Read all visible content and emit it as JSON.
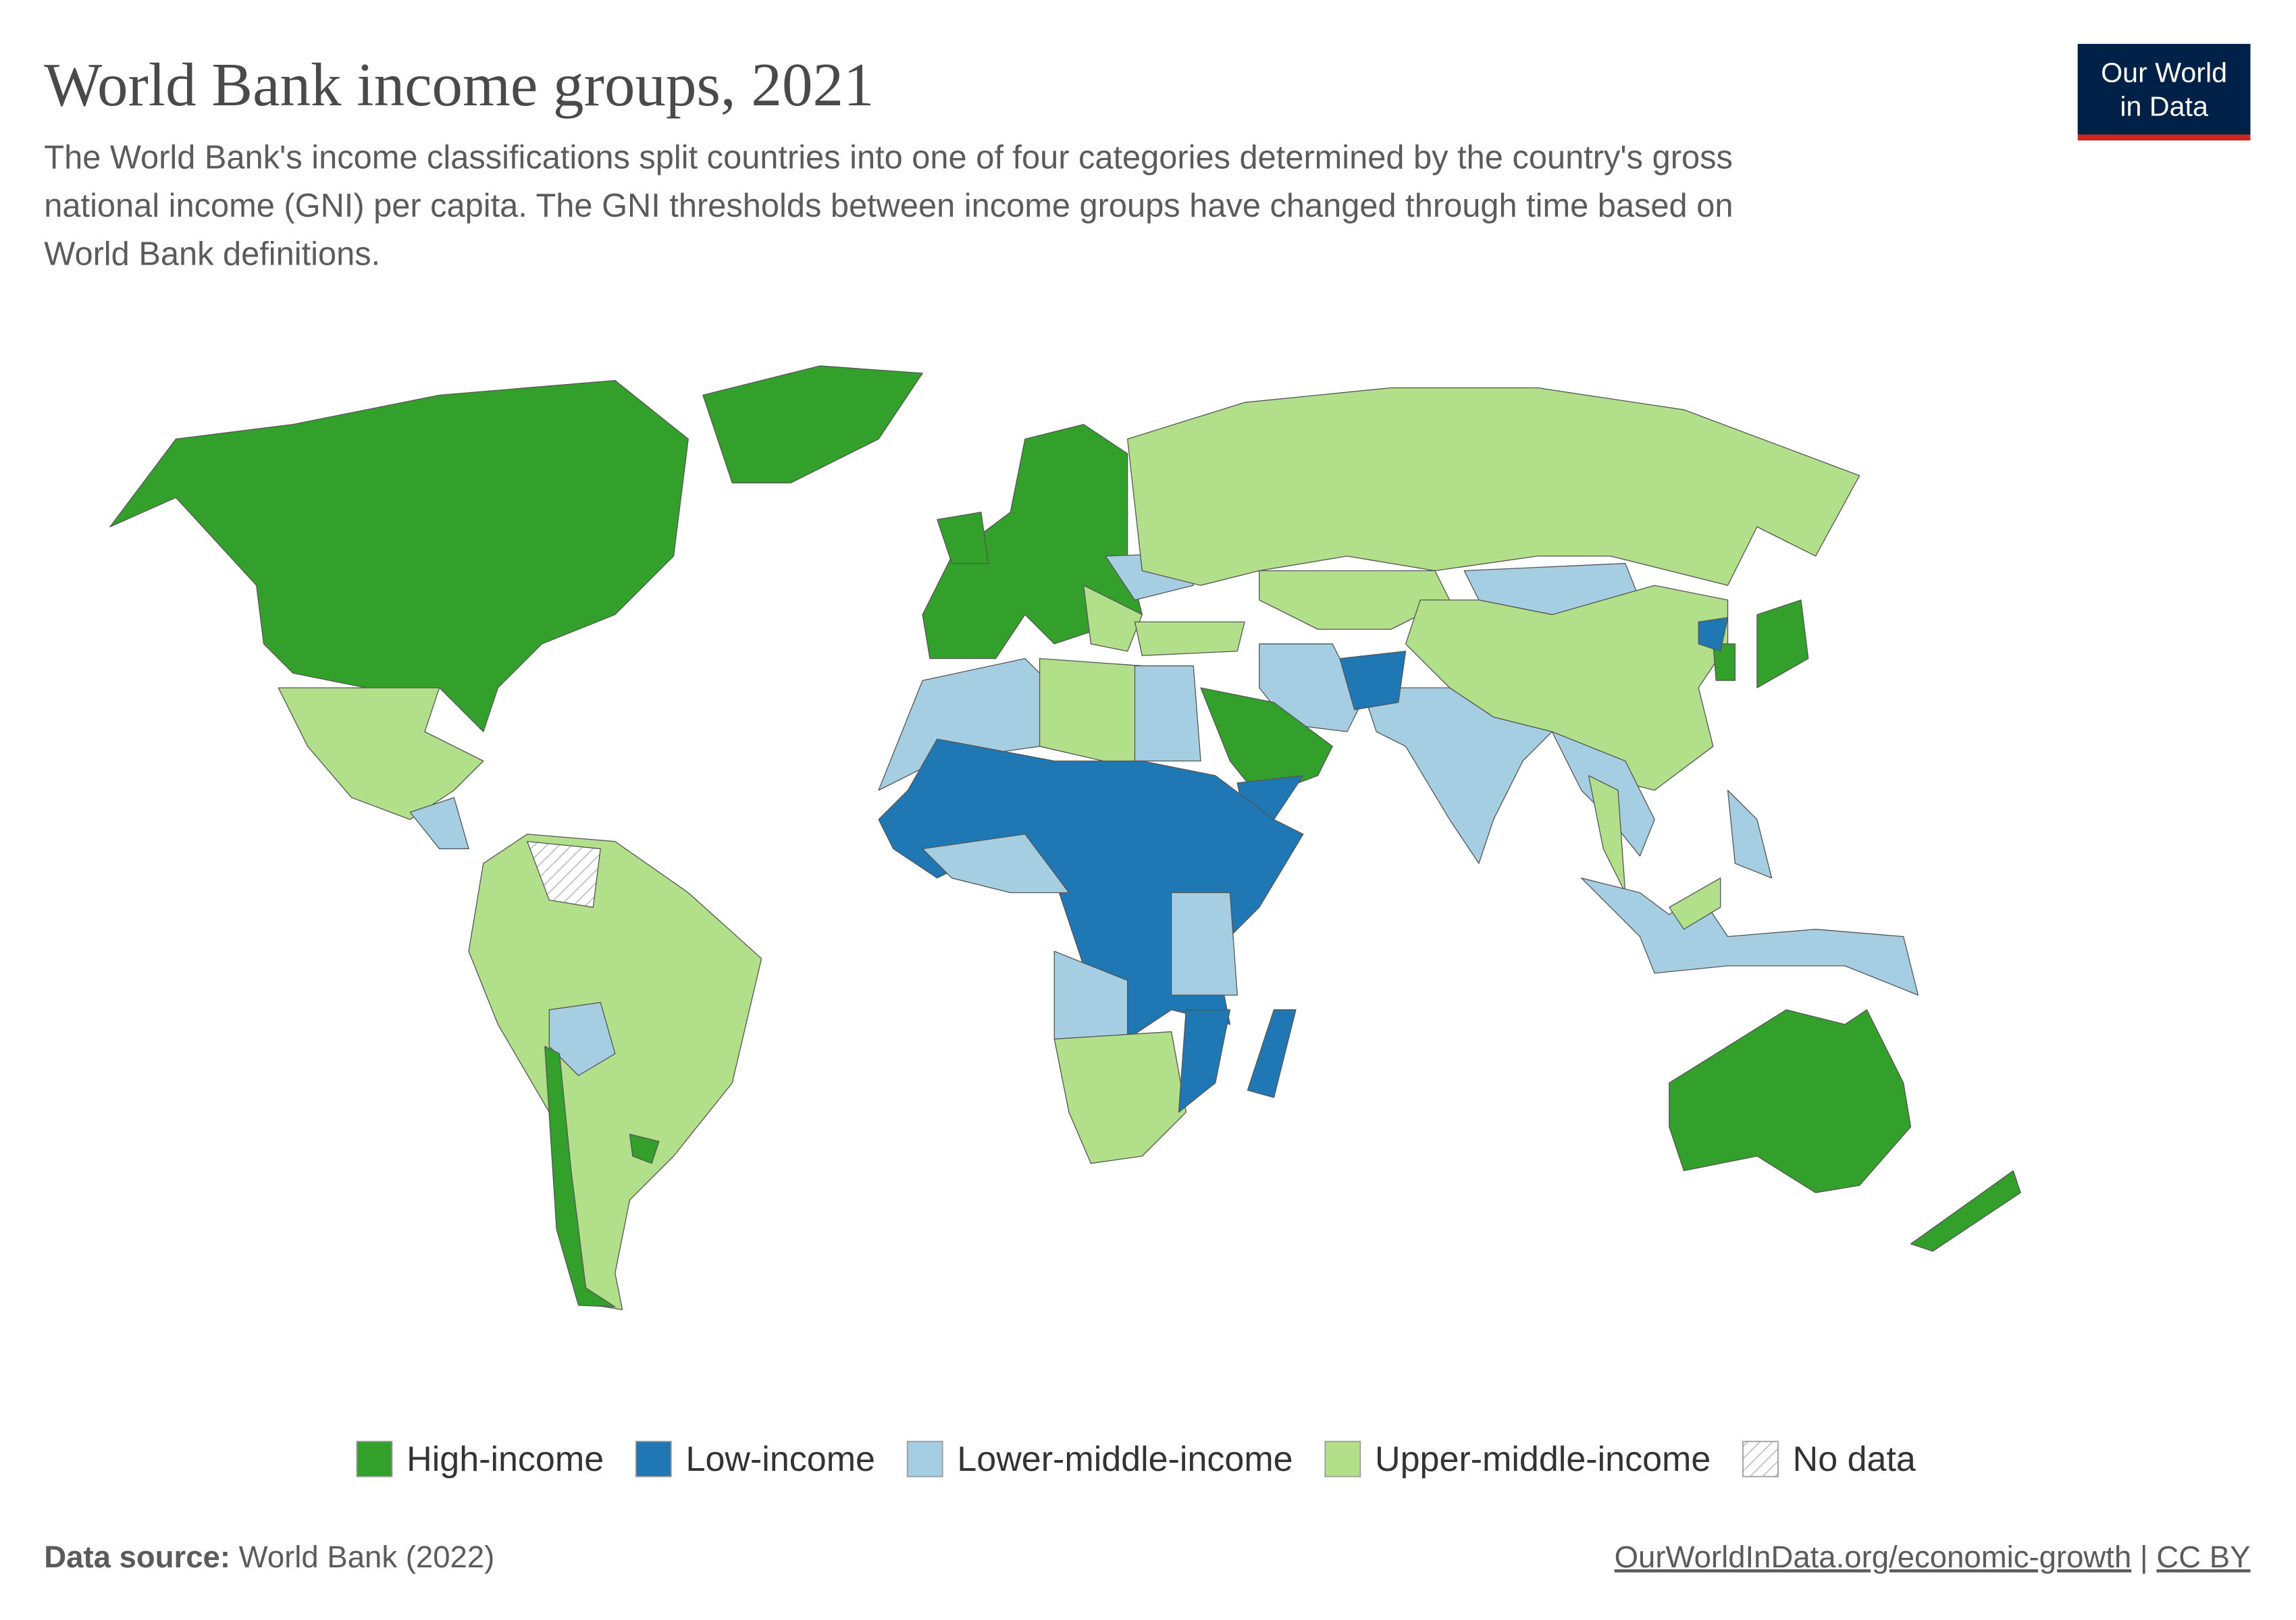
{
  "header": {
    "title": "World Bank income groups, 2021",
    "subtitle": [
      "The World Bank's income classifications split countries into one of four categories determined by the country's gross",
      "national income (GNI) per capita. The GNI thresholds between income groups have changed through time based on",
      "World Bank definitions."
    ],
    "logo": [
      "Our World",
      "in Data"
    ]
  },
  "legend": [
    {
      "label": "High-income",
      "color": "#33a02c"
    },
    {
      "label": "Low-income",
      "color": "#1f78b4"
    },
    {
      "label": "Lower-middle-income",
      "color": "#a6cee3"
    },
    {
      "label": "Upper-middle-income",
      "color": "#b2df8a"
    },
    {
      "label": "No data",
      "pattern": "hatch"
    }
  ],
  "footer": {
    "source_label": "Data source:",
    "source": "World Bank (2022)",
    "link": "OurWorldInData.org/economic-growth",
    "separator": "|",
    "license": "CC BY"
  }
}
